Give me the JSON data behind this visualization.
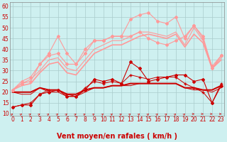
{
  "background_color": "#cef0f0",
  "grid_color": "#aacccc",
  "xlabel": "Vent moyen/en rafales ( km/h )",
  "xlabel_color": "#cc0000",
  "xlabel_fontsize": 7,
  "yticks": [
    10,
    15,
    20,
    25,
    30,
    35,
    40,
    45,
    50,
    55,
    60
  ],
  "xticks": [
    0,
    1,
    2,
    3,
    4,
    5,
    6,
    7,
    8,
    9,
    10,
    11,
    12,
    13,
    14,
    15,
    16,
    17,
    18,
    19,
    20,
    21,
    22,
    23
  ],
  "ylim": [
    9,
    62
  ],
  "xlim": [
    -0.3,
    23.3
  ],
  "series": [
    {
      "x": [
        0,
        1,
        2,
        3,
        4,
        5,
        6,
        7,
        8,
        9,
        10,
        11,
        12,
        13,
        14,
        15,
        16,
        17,
        18,
        19,
        20,
        21,
        22,
        23
      ],
      "y": [
        13,
        14,
        14,
        19,
        20,
        21,
        18,
        18,
        21,
        26,
        25,
        26,
        24,
        34,
        31,
        25,
        26,
        27,
        28,
        28,
        25,
        26,
        15,
        23
      ],
      "color": "#cc0000",
      "lw": 0.8,
      "marker": "D",
      "ms": 2.0
    },
    {
      "x": [
        0,
        1,
        2,
        3,
        4,
        5,
        6,
        7,
        8,
        9,
        10,
        11,
        12,
        13,
        14,
        15,
        16,
        17,
        18,
        19,
        20,
        21,
        22,
        23
      ],
      "y": [
        20,
        19,
        19,
        22,
        20,
        20,
        18,
        18,
        20,
        22,
        22,
        23,
        23,
        24,
        24,
        24,
        24,
        24,
        24,
        22,
        21,
        21,
        20,
        22
      ],
      "color": "#cc0000",
      "lw": 0.7,
      "marker": null,
      "ms": 0
    },
    {
      "x": [
        0,
        1,
        2,
        3,
        4,
        5,
        6,
        7,
        8,
        9,
        10,
        11,
        12,
        13,
        14,
        15,
        16,
        17,
        18,
        19,
        20,
        21,
        22,
        23
      ],
      "y": [
        20,
        20,
        20,
        22,
        21,
        21,
        19,
        19,
        21,
        22,
        22,
        23,
        23,
        23,
        24,
        24,
        24,
        24,
        24,
        22,
        22,
        21,
        21,
        23
      ],
      "color": "#cc0000",
      "lw": 0.7,
      "marker": null,
      "ms": 0
    },
    {
      "x": [
        0,
        1,
        2,
        3,
        4,
        5,
        6,
        7,
        8,
        9,
        10,
        11,
        12,
        13,
        14,
        15,
        16,
        17,
        18,
        19,
        20,
        21,
        22,
        23
      ],
      "y": [
        20,
        20,
        20,
        22,
        21,
        21,
        19,
        19,
        21,
        22,
        22,
        23,
        23,
        24,
        24,
        24,
        24,
        24,
        24,
        22,
        22,
        21,
        21,
        23
      ],
      "color": "#cc0000",
      "lw": 1.4,
      "marker": null,
      "ms": 0
    },
    {
      "x": [
        0,
        1,
        2,
        3,
        4,
        5,
        6,
        7,
        8,
        9,
        10,
        11,
        12,
        13,
        14,
        15,
        16,
        17,
        18,
        19,
        20,
        21,
        22,
        23
      ],
      "y": [
        13,
        14,
        15,
        19,
        21,
        21,
        19,
        18,
        22,
        25,
        24,
        25,
        24,
        28,
        27,
        26,
        27,
        27,
        27,
        24,
        22,
        20,
        15,
        24
      ],
      "color": "#cc0000",
      "lw": 0.7,
      "marker": "+",
      "ms": 3.5
    },
    {
      "x": [
        0,
        1,
        2,
        3,
        4,
        5,
        6,
        7,
        8,
        9,
        10,
        11,
        12,
        13,
        14,
        15,
        16,
        17,
        18,
        19,
        20,
        21,
        22,
        23
      ],
      "y": [
        21,
        25,
        27,
        33,
        38,
        46,
        38,
        33,
        40,
        44,
        44,
        46,
        46,
        54,
        56,
        57,
        53,
        52,
        55,
        45,
        51,
        46,
        31,
        37
      ],
      "color": "#ff9999",
      "lw": 0.8,
      "marker": "D",
      "ms": 2.0
    },
    {
      "x": [
        0,
        1,
        2,
        3,
        4,
        5,
        6,
        7,
        8,
        9,
        10,
        11,
        12,
        13,
        14,
        15,
        16,
        17,
        18,
        19,
        20,
        21,
        22,
        23
      ],
      "y": [
        21,
        24,
        25,
        33,
        37,
        38,
        33,
        33,
        38,
        44,
        44,
        46,
        46,
        46,
        48,
        45,
        43,
        42,
        44,
        46,
        51,
        45,
        32,
        37
      ],
      "color": "#ff9999",
      "lw": 0.8,
      "marker": "D",
      "ms": 2.0
    },
    {
      "x": [
        0,
        1,
        2,
        3,
        4,
        5,
        6,
        7,
        8,
        9,
        10,
        11,
        12,
        13,
        14,
        15,
        16,
        17,
        18,
        19,
        20,
        21,
        22,
        23
      ],
      "y": [
        21,
        24,
        26,
        30,
        35,
        36,
        31,
        30,
        35,
        40,
        42,
        44,
        44,
        46,
        48,
        48,
        47,
        46,
        48,
        42,
        50,
        44,
        31,
        36
      ],
      "color": "#ff9999",
      "lw": 0.8,
      "marker": null,
      "ms": 0
    },
    {
      "x": [
        0,
        1,
        2,
        3,
        4,
        5,
        6,
        7,
        8,
        9,
        10,
        11,
        12,
        13,
        14,
        15,
        16,
        17,
        18,
        19,
        20,
        21,
        22,
        23
      ],
      "y": [
        21,
        23,
        24,
        29,
        33,
        34,
        29,
        28,
        33,
        38,
        40,
        42,
        42,
        44,
        46,
        47,
        46,
        45,
        47,
        41,
        47,
        43,
        31,
        35
      ],
      "color": "#ff9999",
      "lw": 1.2,
      "marker": null,
      "ms": 0
    }
  ],
  "arrow_angles": [
    45,
    45,
    45,
    45,
    45,
    45,
    45,
    45,
    45,
    45,
    45,
    45,
    45,
    45,
    45,
    45,
    45,
    45,
    45,
    45,
    90,
    90,
    90,
    90
  ],
  "arrow_color": "#cc0000",
  "tick_fontsize": 5.5,
  "tick_color": "#cc0000"
}
